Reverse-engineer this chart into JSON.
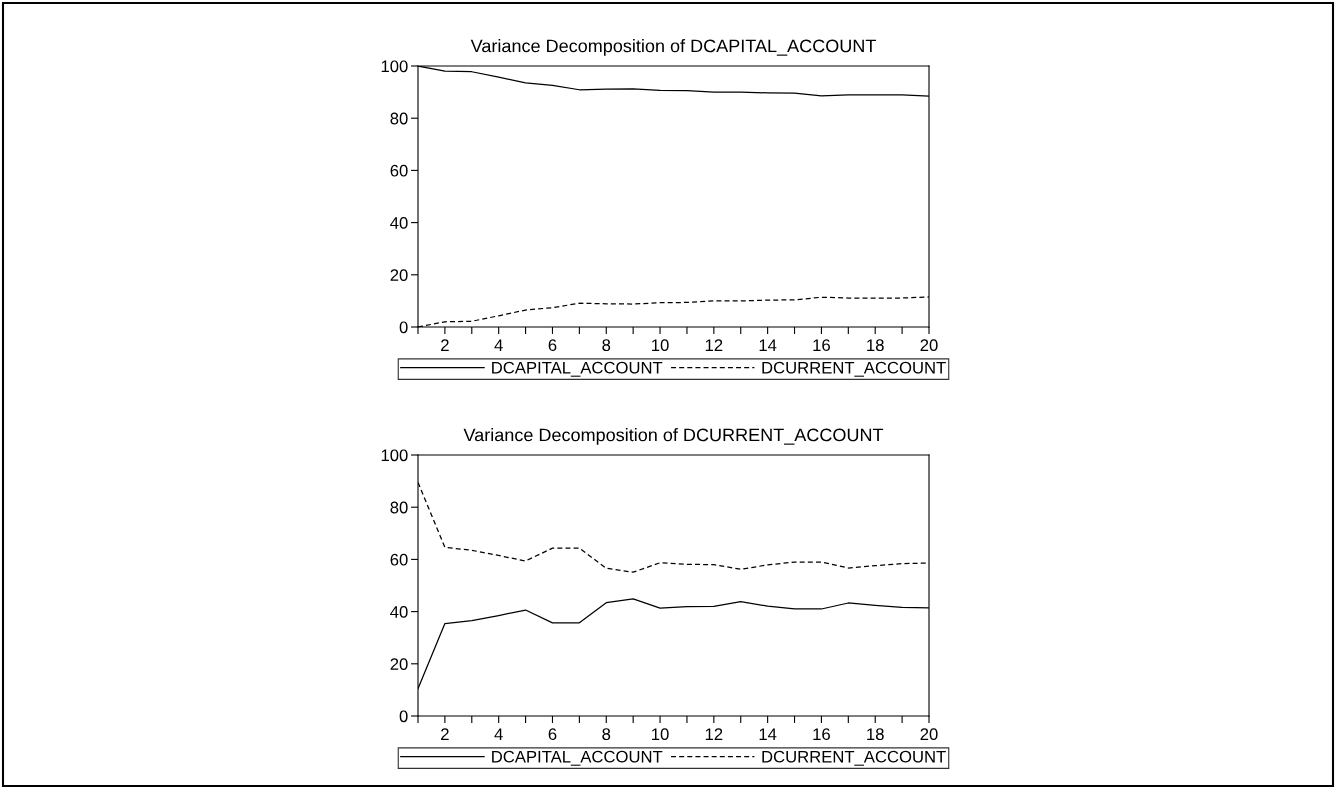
{
  "chart_data": [
    {
      "type": "line",
      "title": "Variance Decomposition of DCAPITAL_ACCOUNT",
      "x": [
        1,
        2,
        3,
        4,
        5,
        6,
        7,
        8,
        9,
        10,
        11,
        12,
        13,
        14,
        15,
        16,
        17,
        18,
        19,
        20
      ],
      "series": [
        {
          "name": "DCAPITAL_ACCOUNT",
          "color": "#000000",
          "line_style": "solid",
          "values": [
            100,
            98.0,
            97.8,
            95.7,
            93.5,
            92.6,
            90.9,
            91.1,
            91.2,
            90.7,
            90.6,
            90.0,
            90.0,
            89.7,
            89.6,
            88.6,
            88.9,
            88.9,
            88.9,
            88.5
          ]
        },
        {
          "name": "DCURRENT_ACCOUNT",
          "color": "#000000",
          "line_style": "dashed",
          "values": [
            0,
            2.0,
            2.2,
            4.3,
            6.5,
            7.4,
            9.1,
            8.9,
            8.8,
            9.3,
            9.4,
            10.0,
            10.0,
            10.3,
            10.4,
            11.4,
            11.1,
            11.1,
            11.1,
            11.5
          ]
        }
      ],
      "xlim": [
        1,
        20
      ],
      "xticks": [
        {
          "value": 1,
          "label": null
        },
        2,
        {
          "value": 3,
          "label": null
        },
        4,
        {
          "value": 5,
          "label": null
        },
        6,
        {
          "value": 7,
          "label": null
        },
        8,
        {
          "value": 9,
          "label": null
        },
        10,
        {
          "value": 11,
          "label": null
        },
        12,
        {
          "value": 13,
          "label": null
        },
        14,
        {
          "value": 15,
          "label": null
        },
        16,
        {
          "value": 17,
          "label": null
        },
        18,
        {
          "value": 19,
          "label": null
        },
        20
      ],
      "ylim": [
        0,
        100
      ],
      "yticks": [
        0,
        20,
        40,
        60,
        80,
        100
      ],
      "grid": false,
      "legend": "bottom"
    },
    {
      "type": "line",
      "title": "Variance Decomposition of DCURRENT_ACCOUNT",
      "x": [
        1,
        2,
        3,
        4,
        5,
        6,
        7,
        8,
        9,
        10,
        11,
        12,
        13,
        14,
        15,
        16,
        17,
        18,
        19,
        20
      ],
      "series": [
        {
          "name": "DCAPITAL_ACCOUNT",
          "color": "#000000",
          "line_style": "solid",
          "values": [
            10.5,
            35.4,
            36.5,
            38.5,
            40.6,
            35.7,
            35.7,
            43.4,
            44.9,
            41.3,
            41.9,
            42.0,
            43.8,
            42.1,
            41.0,
            41.0,
            43.3,
            42.4,
            41.6,
            41.4
          ]
        },
        {
          "name": "DCURRENT_ACCOUNT",
          "color": "#000000",
          "line_style": "dashed",
          "values": [
            89.5,
            64.6,
            63.5,
            61.5,
            59.4,
            64.3,
            64.3,
            56.6,
            55.1,
            58.7,
            58.1,
            58.0,
            56.2,
            57.9,
            59.0,
            59.0,
            56.7,
            57.6,
            58.4,
            58.6
          ]
        }
      ],
      "xlim": [
        1,
        20
      ],
      "xticks": [
        {
          "value": 1,
          "label": null
        },
        2,
        {
          "value": 3,
          "label": null
        },
        4,
        {
          "value": 5,
          "label": null
        },
        6,
        {
          "value": 7,
          "label": null
        },
        8,
        {
          "value": 9,
          "label": null
        },
        10,
        {
          "value": 11,
          "label": null
        },
        12,
        {
          "value": 13,
          "label": null
        },
        14,
        {
          "value": 15,
          "label": null
        },
        16,
        {
          "value": 17,
          "label": null
        },
        18,
        {
          "value": 19,
          "label": null
        },
        20
      ],
      "ylim": [
        0,
        100
      ],
      "yticks": [
        0,
        20,
        40,
        60,
        80,
        100
      ],
      "grid": false,
      "legend": "bottom"
    }
  ]
}
